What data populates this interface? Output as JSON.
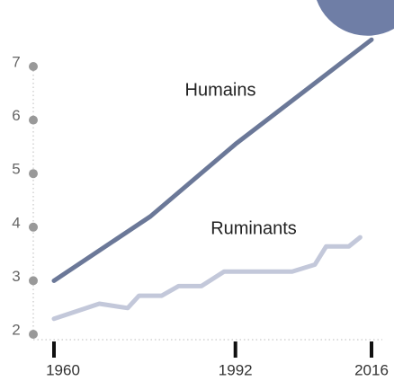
{
  "chart_data": {
    "type": "line",
    "annotations": [
      "Humains",
      "Ruminants"
    ],
    "series": [
      {
        "name": "Humains",
        "color": "#6b7898",
        "x": [
          1960,
          1977,
          1992,
          2016
        ],
        "values": [
          3.0,
          4.2,
          5.55,
          7.5
        ]
      },
      {
        "name": "Ruminants",
        "color": "#c3c8da",
        "x": [
          1960,
          1968,
          1973,
          1975,
          1979,
          1982,
          1986,
          1990,
          1995,
          2002,
          2006,
          2008,
          2012,
          2014
        ],
        "values": [
          2.29,
          2.57,
          2.49,
          2.72,
          2.72,
          2.9,
          2.9,
          3.17,
          3.17,
          3.17,
          3.3,
          3.64,
          3.64,
          3.81
        ]
      }
    ],
    "xlim": [
      1960,
      2016
    ],
    "xticks": [
      1960,
      1992,
      2016
    ],
    "ylim": [
      2,
      7
    ],
    "yticks": [
      2,
      3,
      4,
      5,
      6,
      7
    ]
  }
}
